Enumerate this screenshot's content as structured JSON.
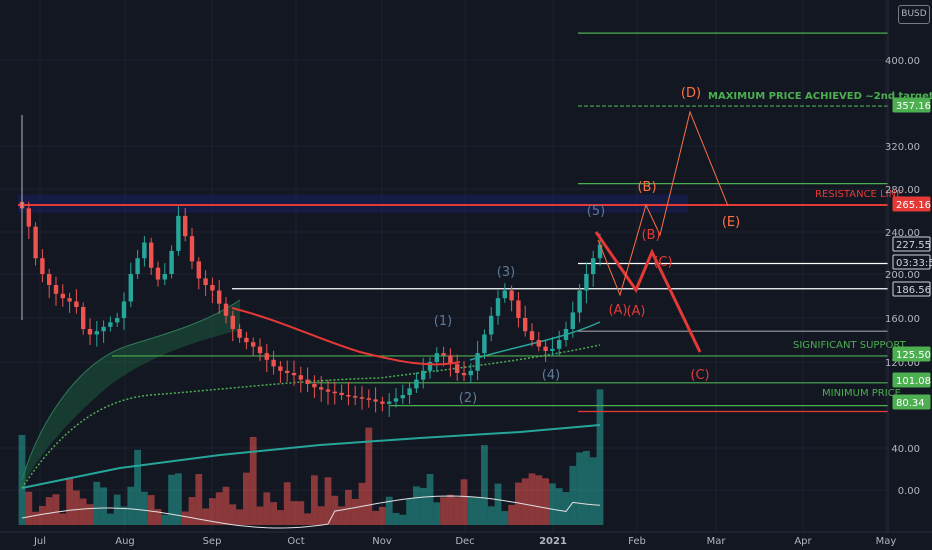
{
  "symbol": "BUSD",
  "colors": {
    "background": "#131722",
    "grid": "#1e2230",
    "candle_up": "#26a69a",
    "candle_down": "#ef5350",
    "green_line": "#4caf50",
    "red_line": "#e53935",
    "white_line": "#ffffff",
    "ema": "#c0392b",
    "baseline": "#26a69a"
  },
  "y_axis_labels": [
    "400.00",
    "320.00",
    "280.00",
    "240.00",
    "200.00",
    "160.00",
    "120.00",
    "40.00",
    "0.00"
  ],
  "x_axis_labels": [
    "Jul",
    "Aug",
    "Sep",
    "Oct",
    "Nov",
    "Dec",
    "2021",
    "Feb",
    "Mar",
    "Apr",
    "May"
  ],
  "price_tags": [
    {
      "text": "357.16",
      "kind": "green"
    },
    {
      "text": "265.16",
      "kind": "red"
    },
    {
      "text": "227.55",
      "kind": "dark"
    },
    {
      "text": "03:33:57",
      "kind": "dark"
    },
    {
      "text": "186.56",
      "kind": "dark"
    },
    {
      "text": "125.50",
      "kind": "green"
    },
    {
      "text": "101.08",
      "kind": "green"
    },
    {
      "text": "80.34",
      "kind": "green"
    }
  ],
  "annotations": {
    "max_price": "MAXIMUM PRICE ACHIEVED ~2nd target",
    "resistance": "RESISTANCE LINE",
    "support": "SIGNIFICANT SUPPORT",
    "minimum": "MINIMUM PRICE"
  },
  "wave_labels": [
    {
      "text": "(1)",
      "color": "#5d7a99"
    },
    {
      "text": "(2)",
      "color": "#5d7a99"
    },
    {
      "text": "(3)",
      "color": "#5d7a99"
    },
    {
      "text": "(4)",
      "color": "#5d7a99"
    },
    {
      "text": "(5)",
      "color": "#5d7a99"
    },
    {
      "text": "(A)",
      "color": "#e53935"
    },
    {
      "text": "(A)",
      "color": "#e53935"
    },
    {
      "text": "(B)",
      "color": "#e53935"
    },
    {
      "text": "(C)",
      "color": "#e53935"
    },
    {
      "text": "(C)",
      "color": "#e53935"
    },
    {
      "text": "(B)",
      "color": "#ff7043"
    },
    {
      "text": "(D)",
      "color": "#ff7043"
    },
    {
      "text": "(E)",
      "color": "#ff7043"
    }
  ],
  "chart_data": {
    "type": "candlestick",
    "y_scale": "price",
    "horizontal_levels": [
      {
        "value": 425,
        "color": "green"
      },
      {
        "value": 357.16,
        "color": "green",
        "style": "dashed"
      },
      {
        "value": 285,
        "color": "green"
      },
      {
        "value": 265.16,
        "color": "red"
      },
      {
        "value": 210,
        "color": "white"
      },
      {
        "value": 186.56,
        "color": "white"
      },
      {
        "value": 148,
        "color": "gray"
      },
      {
        "value": 125.5,
        "color": "green"
      },
      {
        "value": 101.08,
        "color": "green"
      },
      {
        "value": 80.34,
        "color": "green"
      }
    ],
    "close_series_approx": [
      262,
      245,
      215,
      200,
      190,
      182,
      178,
      175,
      170,
      150,
      145,
      148,
      152,
      156,
      160,
      175,
      200,
      215,
      230,
      206,
      195,
      200,
      222,
      255,
      236,
      212,
      196,
      190,
      185,
      173,
      162,
      150,
      142,
      138,
      134,
      128,
      122,
      116,
      112,
      110,
      108,
      104,
      100,
      97,
      95,
      93,
      92,
      90,
      89,
      88,
      87,
      86,
      84,
      82,
      84,
      87,
      90,
      96,
      104,
      112,
      120,
      128,
      126,
      118,
      110,
      108,
      112,
      128,
      145,
      162,
      178,
      185,
      176,
      160,
      148,
      140,
      134,
      130,
      132,
      140,
      150,
      165,
      185,
      200,
      215,
      228
    ]
  }
}
